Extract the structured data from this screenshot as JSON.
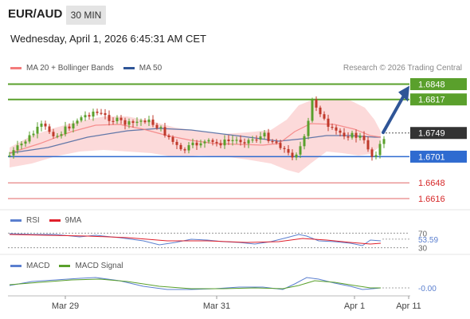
{
  "header": {
    "pair": "EUR/AUD",
    "timeframe": "30 MIN",
    "datetime": "Wednesday, April 1, 2026 6:45:31 AM CET"
  },
  "legends": {
    "price": [
      {
        "label": "MA 20 + Bollinger Bands",
        "color": "#f47b7b"
      },
      {
        "label": "MA 50",
        "color": "#2f5597"
      }
    ],
    "rsi": [
      {
        "label": "RSI",
        "color": "#5b7fcf"
      },
      {
        "label": "9MA",
        "color": "#e0202c"
      }
    ],
    "macd": [
      {
        "label": "MACD",
        "color": "#5b7fcf"
      },
      {
        "label": "MACD Signal",
        "color": "#5aa02c"
      }
    ]
  },
  "credit": "Research © 2026 Trading Central",
  "colors": {
    "resistance": "#5aa02c",
    "support": "#2f6bd0",
    "support_red": "#e06666",
    "current_price": "#333333",
    "bull_candle": "#5aa02c",
    "bear_candle": "#c0392b",
    "band_fill": "#fbd3d3"
  },
  "chart_data": [
    {
      "type": "candlestick",
      "instrument": "EUR/AUD",
      "timeframe": "30 MIN",
      "x_labels": [
        "Mar 29",
        "Mar 31",
        "Apr 1",
        "Apr 11"
      ],
      "ylim": [
        1.6595,
        1.6865
      ],
      "levels": [
        {
          "value": "1.6848",
          "kind": "resistance"
        },
        {
          "value": "1.6817",
          "kind": "resistance"
        },
        {
          "value": "1.6749",
          "kind": "current"
        },
        {
          "value": "1.6701",
          "kind": "support"
        },
        {
          "value": "1.6648",
          "kind": "support_minor"
        },
        {
          "value": "1.6616",
          "kind": "support_minor"
        }
      ],
      "forecast_arrow": {
        "from": 1.675,
        "to": 1.6835
      }
    },
    {
      "type": "line",
      "name": "RSI",
      "series": [
        "RSI",
        "9MA"
      ],
      "ylim": [
        25,
        75
      ],
      "reference_levels": [
        "70",
        "30"
      ],
      "last_value": "53.59"
    },
    {
      "type": "line",
      "name": "MACD",
      "series": [
        "MACD",
        "MACD Signal"
      ],
      "last_value": "-0.00"
    }
  ]
}
